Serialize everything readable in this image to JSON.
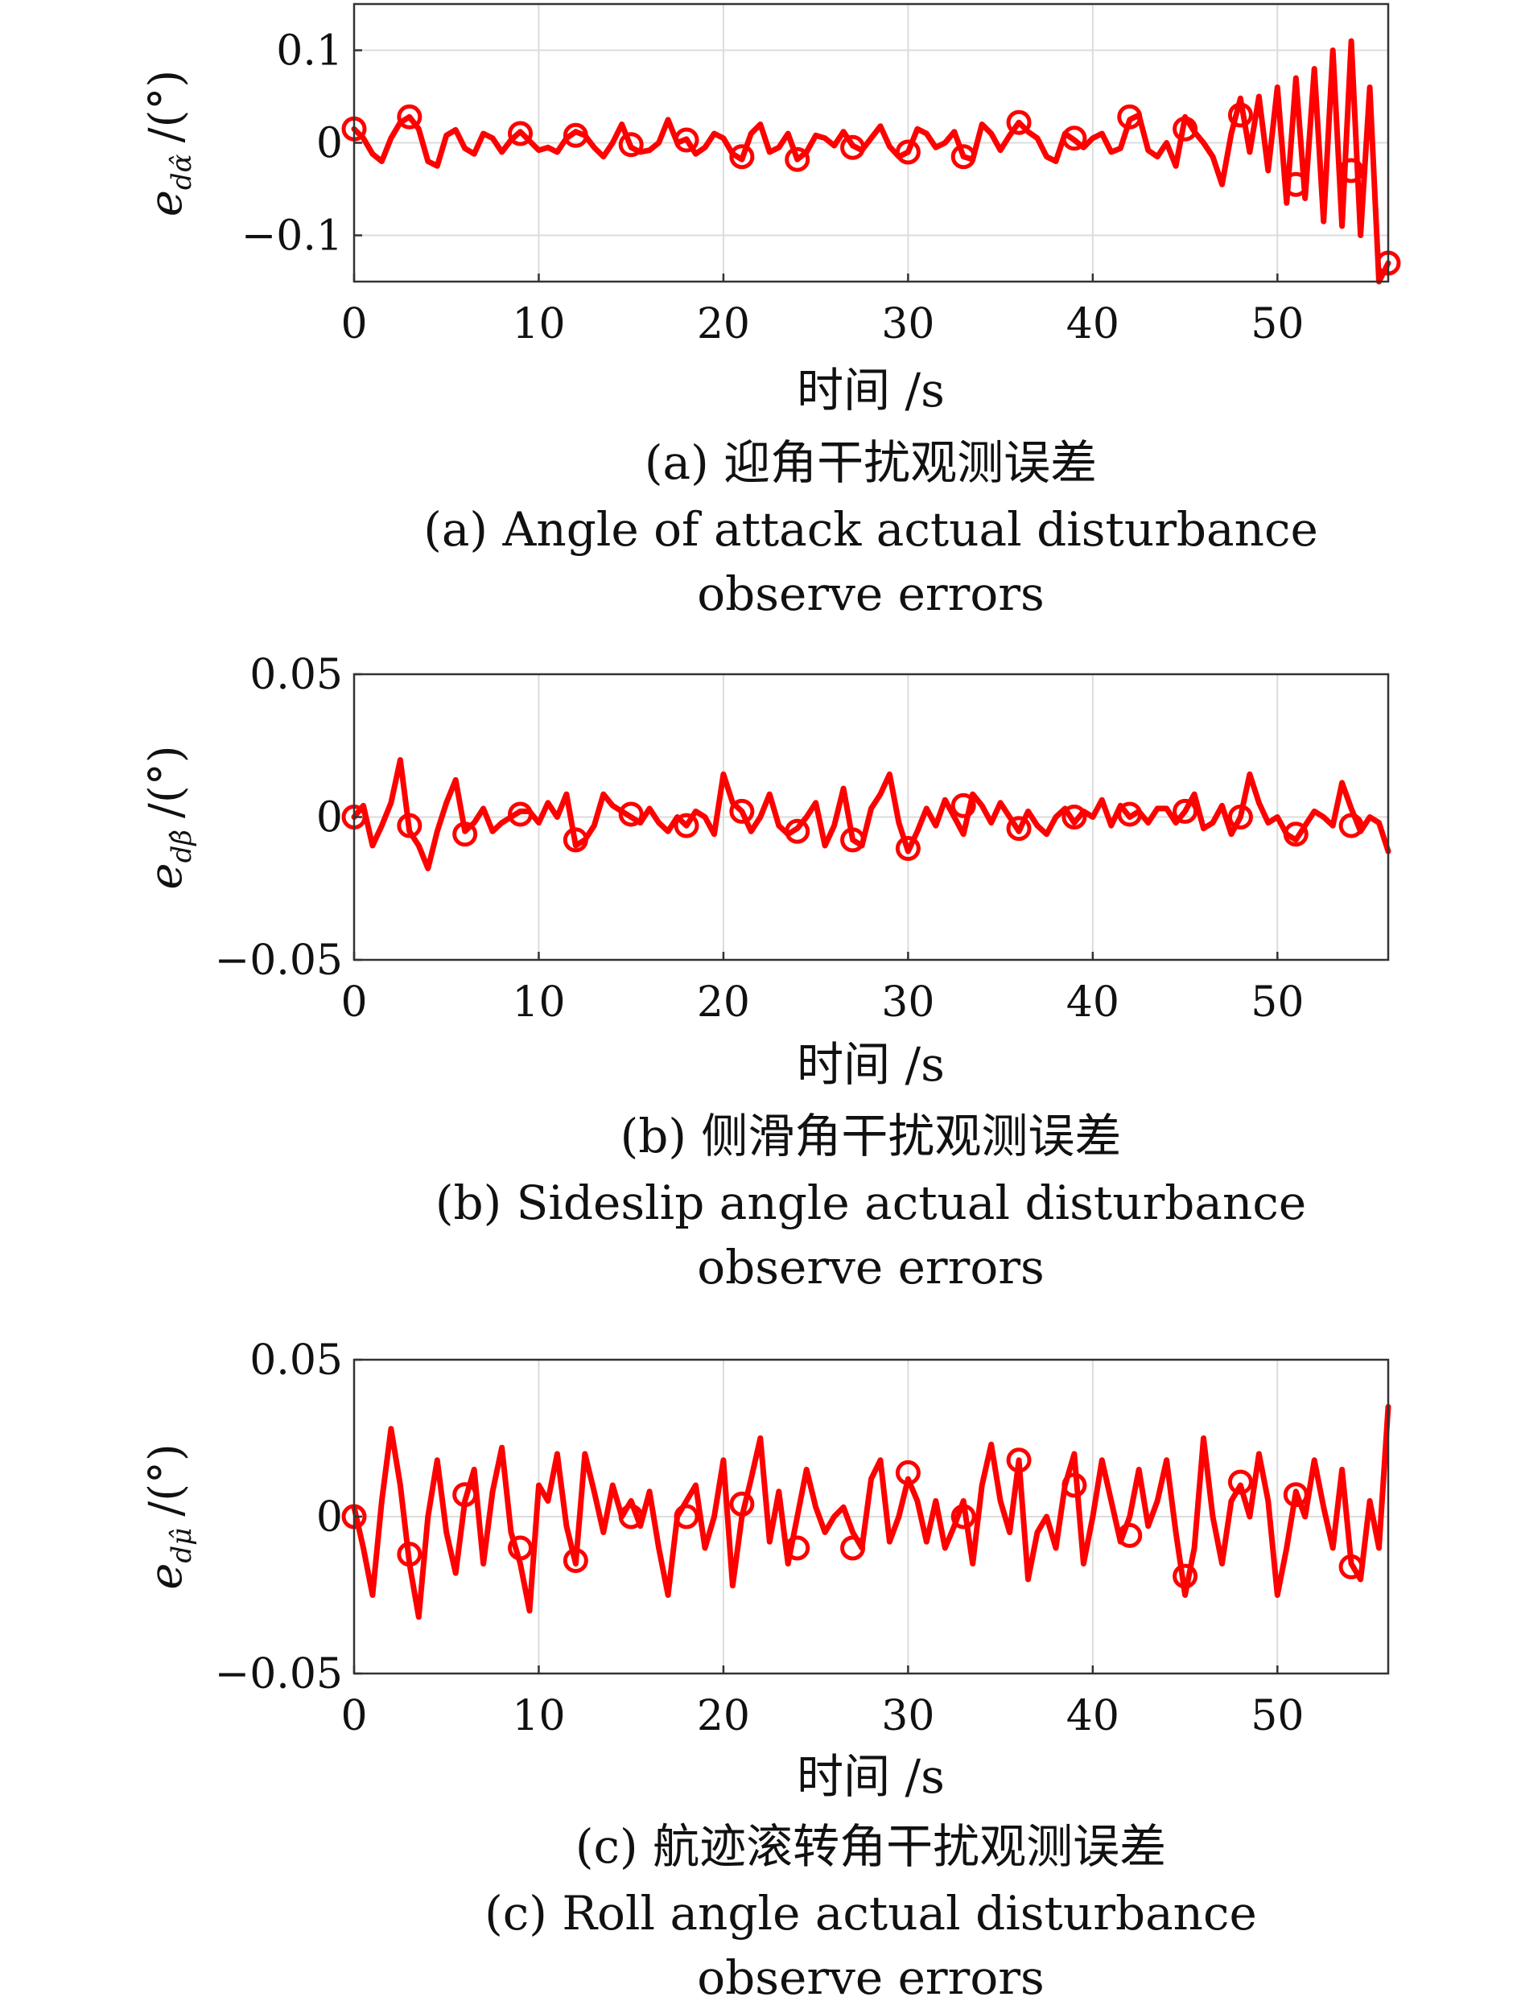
{
  "chart_data": [
    {
      "type": "line",
      "panel": "a",
      "ylabel_main": "e",
      "ylabel_sub": "dα̂",
      "ylabel_unit": "/(°)",
      "xlabel": "时间 /s",
      "caption_cn": "(a) 迎角干扰观测误差",
      "caption_en_1": "(a) Angle of attack actual disturbance",
      "caption_en_2": "observe errors",
      "xlim": [
        0,
        56
      ],
      "ylim": [
        -0.15,
        0.15
      ],
      "x_ticks": [
        0,
        10,
        20,
        30,
        40,
        50
      ],
      "x_tick_labels": [
        "0",
        "10",
        "20",
        "30",
        "40",
        "50"
      ],
      "y_ticks": [
        -0.1,
        0,
        0.1
      ],
      "y_tick_labels": [
        "−0.1",
        "0",
        "0.1"
      ],
      "grid": true,
      "series_color": "#ff0000",
      "marker": "circle",
      "x": [
        0,
        0.5,
        1,
        1.5,
        2,
        2.5,
        3,
        3.5,
        4,
        4.5,
        5,
        5.5,
        6,
        6.5,
        7,
        7.5,
        8,
        8.5,
        9,
        9.5,
        10,
        10.5,
        11,
        11.5,
        12,
        12.5,
        13,
        13.5,
        14,
        14.5,
        15,
        15.5,
        16,
        16.5,
        17,
        17.5,
        18,
        18.5,
        19,
        19.5,
        20,
        20.5,
        21,
        21.5,
        22,
        22.5,
        23,
        23.5,
        24,
        24.5,
        25,
        25.5,
        26,
        26.5,
        27,
        27.5,
        28,
        28.5,
        29,
        29.5,
        30,
        30.5,
        31,
        31.5,
        32,
        32.5,
        33,
        33.5,
        34,
        34.5,
        35,
        35.5,
        36,
        36.5,
        37,
        37.5,
        38,
        38.5,
        39,
        39.5,
        40,
        40.5,
        41,
        41.5,
        42,
        42.5,
        43,
        43.5,
        44,
        44.5,
        45,
        45.5,
        46,
        46.5,
        47,
        47.5,
        48,
        48.5,
        49,
        49.5,
        50,
        50.5,
        51,
        51.5,
        52,
        52.5,
        53,
        53.5,
        54,
        54.5,
        55,
        55.5,
        56
      ],
      "y": [
        0.015,
        0.005,
        -0.012,
        -0.02,
        0.005,
        0.022,
        0.028,
        0.015,
        -0.02,
        -0.025,
        0.008,
        0.014,
        -0.006,
        -0.012,
        0.01,
        0.005,
        -0.01,
        0.003,
        0.012,
        0.002,
        -0.008,
        -0.005,
        -0.01,
        0.005,
        0.012,
        0.008,
        -0.005,
        -0.015,
        0.0,
        0.02,
        -0.005,
        -0.01,
        -0.008,
        0.0,
        0.025,
        0.0,
        0.004,
        -0.012,
        -0.005,
        0.01,
        0.005,
        -0.012,
        -0.018,
        0.01,
        0.02,
        -0.01,
        -0.005,
        0.01,
        -0.018,
        -0.01,
        0.008,
        0.005,
        -0.003,
        0.012,
        -0.003,
        -0.008,
        0.005,
        0.018,
        -0.004,
        -0.015,
        -0.01,
        0.015,
        0.01,
        -0.005,
        0.0,
        0.012,
        -0.015,
        -0.018,
        0.02,
        0.01,
        -0.008,
        0.008,
        0.022,
        0.012,
        0.005,
        -0.015,
        -0.02,
        0.01,
        0.003,
        -0.005,
        0.005,
        0.01,
        -0.01,
        -0.006,
        0.025,
        0.03,
        -0.008,
        -0.015,
        0.0,
        -0.025,
        0.028,
        0.012,
        0.0,
        -0.015,
        -0.045,
        0.01,
        0.048,
        -0.01,
        0.05,
        -0.03,
        0.06,
        -0.065,
        0.07,
        -0.06,
        0.08,
        -0.085,
        0.1,
        -0.09,
        0.11,
        -0.1,
        0.06,
        -0.15,
        -0.13
      ],
      "markers_x": [
        0,
        3,
        9,
        12,
        15,
        18,
        21,
        24,
        27,
        30,
        33,
        36,
        39,
        42,
        45,
        48,
        51,
        54,
        56
      ],
      "markers_y": [
        0.015,
        0.028,
        0.01,
        0.008,
        -0.002,
        0.003,
        -0.015,
        -0.018,
        -0.005,
        -0.01,
        -0.015,
        0.022,
        0.005,
        0.028,
        0.015,
        0.03,
        -0.045,
        -0.03,
        -0.13
      ]
    },
    {
      "type": "line",
      "panel": "b",
      "ylabel_main": "e",
      "ylabel_sub": "dβ̂",
      "ylabel_unit": "/(°)",
      "xlabel": "时间 /s",
      "caption_cn": "(b) 侧滑角干扰观测误差",
      "caption_en_1": "(b) Sideslip angle actual disturbance",
      "caption_en_2": "observe errors",
      "xlim": [
        0,
        56
      ],
      "ylim": [
        -0.05,
        0.05
      ],
      "x_ticks": [
        0,
        10,
        20,
        30,
        40,
        50
      ],
      "x_tick_labels": [
        "0",
        "10",
        "20",
        "30",
        "40",
        "50"
      ],
      "y_ticks": [
        -0.05,
        0,
        0.05
      ],
      "y_tick_labels": [
        "−0.05",
        "0",
        "0.05"
      ],
      "grid": true,
      "series_color": "#ff0000",
      "marker": "circle",
      "x": [
        0,
        0.5,
        1,
        1.5,
        2,
        2.5,
        3,
        3.5,
        4,
        4.5,
        5,
        5.5,
        6,
        6.5,
        7,
        7.5,
        8,
        8.5,
        9,
        9.5,
        10,
        10.5,
        11,
        11.5,
        12,
        12.5,
        13,
        13.5,
        14,
        14.5,
        15,
        15.5,
        16,
        16.5,
        17,
        17.5,
        18,
        18.5,
        19,
        19.5,
        20,
        20.5,
        21,
        21.5,
        22,
        22.5,
        23,
        23.5,
        24,
        24.5,
        25,
        25.5,
        26,
        26.5,
        27,
        27.5,
        28,
        28.5,
        29,
        29.5,
        30,
        30.5,
        31,
        31.5,
        32,
        32.5,
        33,
        33.5,
        34,
        34.5,
        35,
        35.5,
        36,
        36.5,
        37,
        37.5,
        38,
        38.5,
        39,
        39.5,
        40,
        40.5,
        41,
        41.5,
        42,
        42.5,
        43,
        43.5,
        44,
        44.5,
        45,
        45.5,
        46,
        46.5,
        47,
        47.5,
        48,
        48.5,
        49,
        49.5,
        50,
        50.5,
        51,
        51.5,
        52,
        52.5,
        53,
        53.5,
        54,
        54.5,
        55,
        55.5,
        56
      ],
      "y": [
        0.0,
        0.004,
        -0.01,
        -0.003,
        0.005,
        0.02,
        -0.005,
        -0.01,
        -0.018,
        -0.005,
        0.005,
        0.013,
        -0.005,
        -0.002,
        0.003,
        -0.005,
        -0.002,
        0.0,
        0.002,
        0.002,
        -0.002,
        0.005,
        0.0,
        0.008,
        -0.01,
        -0.008,
        -0.003,
        0.008,
        0.004,
        0.002,
        0.0,
        -0.002,
        0.003,
        -0.002,
        -0.005,
        0.0,
        -0.003,
        0.002,
        0.0,
        -0.006,
        0.015,
        0.005,
        0.002,
        -0.005,
        0.0,
        0.008,
        -0.003,
        -0.006,
        -0.004,
        0.0,
        0.005,
        -0.01,
        -0.003,
        0.01,
        -0.008,
        -0.01,
        0.003,
        0.008,
        0.015,
        -0.002,
        -0.012,
        -0.005,
        0.003,
        -0.003,
        0.006,
        0.0,
        -0.006,
        0.008,
        0.004,
        -0.002,
        0.005,
        0.0,
        -0.005,
        0.002,
        -0.003,
        -0.006,
        0.0,
        0.003,
        -0.002,
        0.002,
        0.0,
        0.006,
        -0.003,
        0.004,
        0.0,
        0.002,
        -0.002,
        0.003,
        0.003,
        -0.002,
        0.002,
        0.008,
        -0.004,
        -0.002,
        0.004,
        -0.006,
        0.0,
        0.015,
        0.005,
        -0.002,
        0.0,
        -0.006,
        -0.008,
        -0.003,
        0.002,
        0.0,
        -0.003,
        0.012,
        0.003,
        -0.005,
        0.0,
        -0.002,
        -0.012
      ],
      "markers_x": [
        0,
        3,
        6,
        9,
        12,
        15,
        18,
        21,
        24,
        27,
        30,
        33,
        36,
        39,
        42,
        45,
        48,
        51,
        54
      ],
      "markers_y": [
        0.0,
        -0.003,
        -0.006,
        0.001,
        -0.008,
        0.001,
        -0.003,
        0.002,
        -0.005,
        -0.008,
        -0.011,
        0.004,
        -0.004,
        0.0,
        0.001,
        0.002,
        0.0,
        -0.006,
        -0.003
      ]
    },
    {
      "type": "line",
      "panel": "c",
      "ylabel_main": "e",
      "ylabel_sub": "dμ̂",
      "ylabel_unit": "/(°)",
      "xlabel": "时间 /s",
      "caption_cn": "(c) 航迹滚转角干扰观测误差",
      "caption_en_1": "(c) Roll angle actual disturbance",
      "caption_en_2": "observe errors",
      "xlim": [
        0,
        56
      ],
      "ylim": [
        -0.05,
        0.05
      ],
      "x_ticks": [
        0,
        10,
        20,
        30,
        40,
        50
      ],
      "x_tick_labels": [
        "0",
        "10",
        "20",
        "30",
        "40",
        "50"
      ],
      "y_ticks": [
        -0.05,
        0,
        0.05
      ],
      "y_tick_labels": [
        "−0.05",
        "0",
        "0.05"
      ],
      "grid": true,
      "series_color": "#ff0000",
      "marker": "circle",
      "x": [
        0,
        0.5,
        1,
        1.5,
        2,
        2.5,
        3,
        3.5,
        4,
        4.5,
        5,
        5.5,
        6,
        6.5,
        7,
        7.5,
        8,
        8.5,
        9,
        9.5,
        10,
        10.5,
        11,
        11.5,
        12,
        12.5,
        13,
        13.5,
        14,
        14.5,
        15,
        15.5,
        16,
        16.5,
        17,
        17.5,
        18,
        18.5,
        19,
        19.5,
        20,
        20.5,
        21,
        21.5,
        22,
        22.5,
        23,
        23.5,
        24,
        24.5,
        25,
        25.5,
        26,
        26.5,
        27,
        27.5,
        28,
        28.5,
        29,
        29.5,
        30,
        30.5,
        31,
        31.5,
        32,
        32.5,
        33,
        33.5,
        34,
        34.5,
        35,
        35.5,
        36,
        36.5,
        37,
        37.5,
        38,
        38.5,
        39,
        39.5,
        40,
        40.5,
        41,
        41.5,
        42,
        42.5,
        43,
        43.5,
        44,
        44.5,
        45,
        45.5,
        46,
        46.5,
        47,
        47.5,
        48,
        48.5,
        49,
        49.5,
        50,
        50.5,
        51,
        51.5,
        52,
        52.5,
        53,
        53.5,
        54,
        54.5,
        55,
        55.5,
        56
      ],
      "y": [
        0.003,
        -0.01,
        -0.025,
        0.005,
        0.028,
        0.01,
        -0.015,
        -0.032,
        0.0,
        0.018,
        -0.005,
        -0.018,
        0.005,
        0.015,
        -0.015,
        0.008,
        0.022,
        -0.005,
        -0.015,
        -0.03,
        0.01,
        0.005,
        0.02,
        -0.003,
        -0.015,
        0.02,
        0.008,
        -0.005,
        0.01,
        0.0,
        0.005,
        -0.003,
        0.008,
        -0.01,
        -0.025,
        0.0,
        0.005,
        0.01,
        -0.01,
        0.0,
        0.018,
        -0.022,
        0.0,
        0.012,
        0.025,
        -0.008,
        0.008,
        -0.015,
        0.0,
        0.015,
        0.003,
        -0.005,
        0.0,
        0.003,
        -0.005,
        -0.01,
        0.012,
        0.018,
        -0.008,
        0.0,
        0.012,
        0.005,
        -0.008,
        0.005,
        -0.01,
        -0.003,
        0.005,
        -0.015,
        0.01,
        0.023,
        0.005,
        -0.005,
        0.018,
        -0.02,
        -0.005,
        0.0,
        -0.01,
        0.01,
        0.02,
        -0.015,
        0.0,
        0.018,
        0.005,
        -0.008,
        0.0,
        0.015,
        -0.003,
        0.005,
        0.018,
        -0.005,
        -0.025,
        -0.01,
        0.025,
        0.0,
        -0.015,
        0.005,
        0.01,
        0.0,
        0.02,
        0.005,
        -0.025,
        -0.01,
        0.008,
        0.0,
        0.018,
        0.003,
        -0.01,
        0.015,
        -0.015,
        -0.02,
        0.005,
        -0.01,
        0.035
      ],
      "markers_x": [
        0,
        3,
        6,
        9,
        12,
        15,
        18,
        21,
        24,
        27,
        30,
        33,
        36,
        39,
        42,
        45,
        48,
        51,
        54
      ],
      "markers_y": [
        0.0,
        -0.012,
        0.007,
        -0.01,
        -0.014,
        0.0,
        0.0,
        0.004,
        -0.01,
        -0.01,
        0.014,
        0.0,
        0.018,
        0.01,
        -0.006,
        -0.019,
        0.011,
        0.007,
        -0.016
      ]
    }
  ]
}
